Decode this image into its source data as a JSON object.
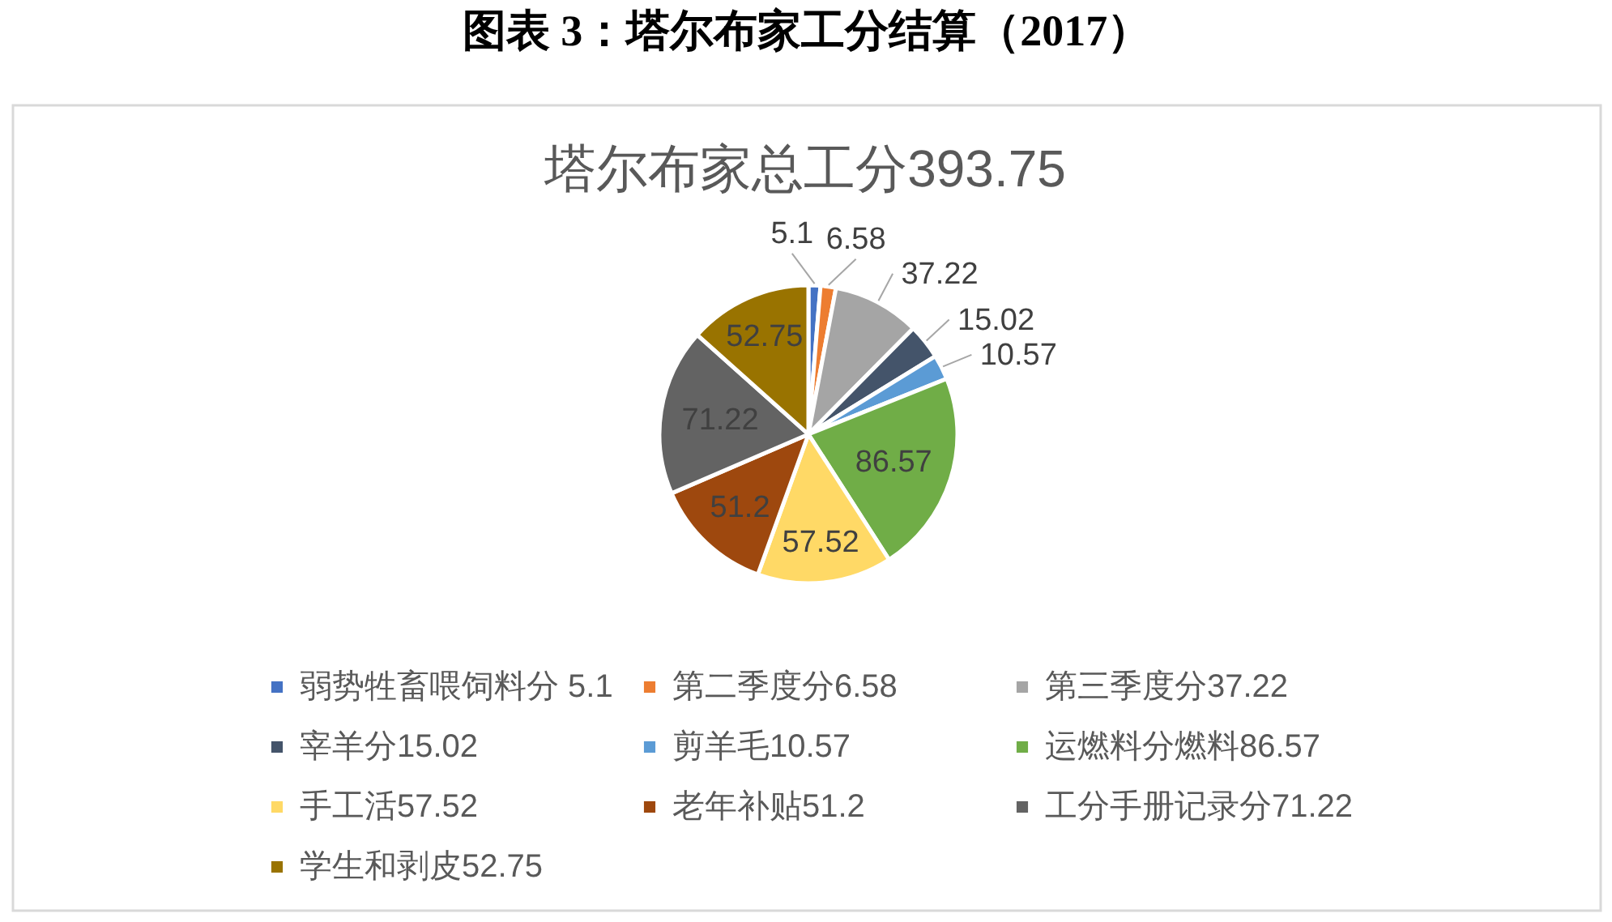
{
  "chart_data": {
    "type": "pie",
    "title": "图表 3：塔尔布家工分结算（2017）",
    "subtitle": "塔尔布家总工分393.75",
    "categories": [
      "弱势牲畜喂饲料分 5.1",
      "第二季度分6.58",
      "第三季度分37.22",
      "宰羊分15.02",
      "剪羊毛10.57",
      "运燃料分燃料86.57",
      "手工活57.52",
      "老年补贴51.2",
      "工分手册记录分71.22",
      "学生和剥皮52.75"
    ],
    "values": [
      5.1,
      6.58,
      37.22,
      15.02,
      10.57,
      86.57,
      57.52,
      51.2,
      71.22,
      52.75
    ],
    "colors": [
      "#4472c4",
      "#ed7d31",
      "#a5a5a5",
      "#44546a",
      "#5b9bd5",
      "#70ad47",
      "#ffd966",
      "#9e480e",
      "#636363",
      "#997300"
    ],
    "data_labels": true,
    "legend": "bottom"
  }
}
